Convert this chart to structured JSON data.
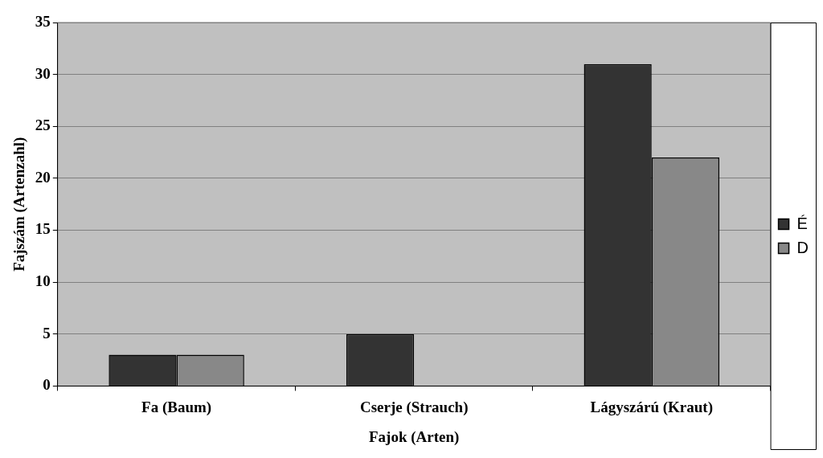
{
  "chart_data": {
    "type": "bar",
    "xlabel": "Fajok (Arten)",
    "ylabel": "Fajszám (Artenzahl)",
    "categories": [
      "Fa (Baum)",
      "Cserje (Strauch)",
      "Lágyszárú (Kraut)"
    ],
    "series": [
      {
        "name": "É",
        "color": "#333333",
        "values": [
          3,
          5,
          31
        ]
      },
      {
        "name": "D",
        "color": "#888888",
        "values": [
          3,
          0,
          22
        ]
      }
    ],
    "ylim": [
      0,
      35
    ],
    "yticks": [
      0,
      5,
      10,
      15,
      20,
      25,
      30,
      35
    ],
    "grid": "y",
    "legend": "right"
  }
}
